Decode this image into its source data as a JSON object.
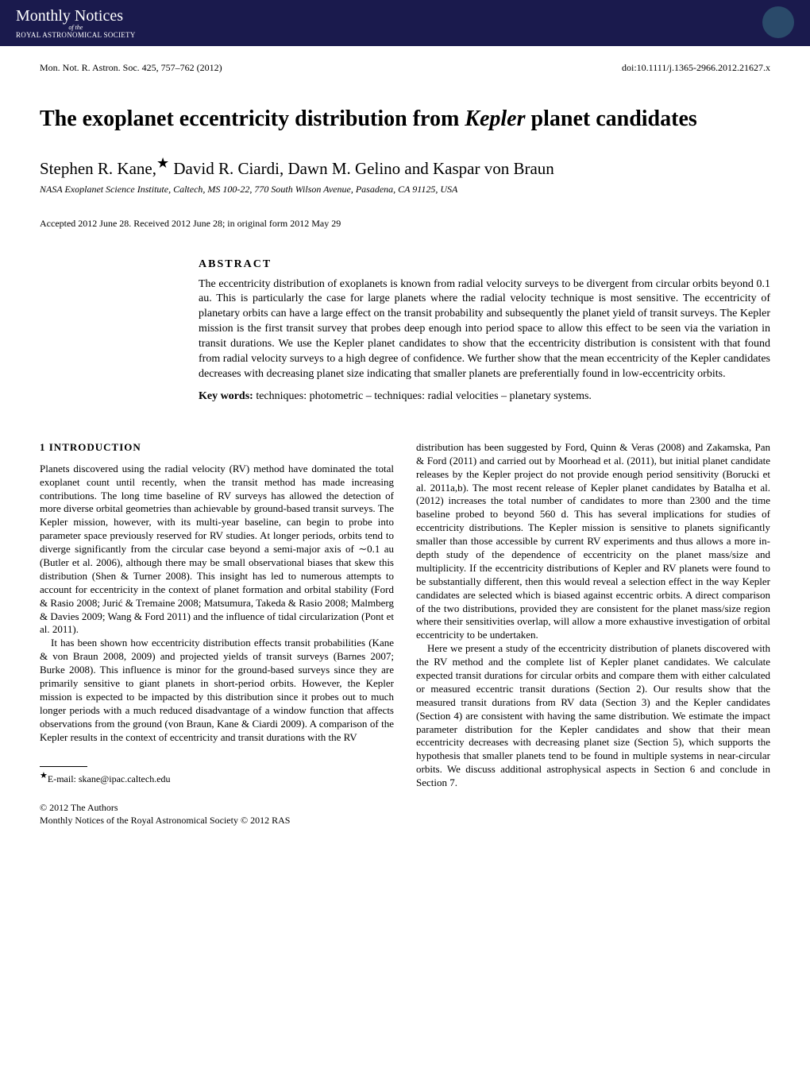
{
  "banner": {
    "journal_title": "Monthly Notices",
    "journal_ofthe": "of the",
    "journal_society": "ROYAL ASTRONOMICAL SOCIETY"
  },
  "citation": {
    "left": "Mon. Not. R. Astron. Soc. 425, 757–762 (2012)",
    "right": "doi:10.1111/j.1365-2966.2012.21627.x"
  },
  "title_pre": "The exoplanet eccentricity distribution from ",
  "title_em": "Kepler",
  "title_post": " planet candidates",
  "authors": "Stephen R. Kane,",
  "authors_rest": " David R. Ciardi, Dawn M. Gelino and Kaspar von Braun",
  "affiliation": "NASA Exoplanet Science Institute, Caltech, MS 100-22, 770 South Wilson Avenue, Pasadena, CA 91125, USA",
  "accepted": "Accepted 2012 June 28. Received 2012 June 28; in original form 2012 May 29",
  "abstract": {
    "heading": "ABSTRACT",
    "text": "The eccentricity distribution of exoplanets is known from radial velocity surveys to be divergent from circular orbits beyond 0.1 au. This is particularly the case for large planets where the radial velocity technique is most sensitive. The eccentricity of planetary orbits can have a large effect on the transit probability and subsequently the planet yield of transit surveys. The Kepler mission is the first transit survey that probes deep enough into period space to allow this effect to be seen via the variation in transit durations. We use the Kepler planet candidates to show that the eccentricity distribution is consistent with that found from radial velocity surveys to a high degree of confidence. We further show that the mean eccentricity of the Kepler candidates decreases with decreasing planet size indicating that smaller planets are preferentially found in low-eccentricity orbits.",
    "keywords_label": "Key words:",
    "keywords": "  techniques: photometric – techniques: radial velocities – planetary systems."
  },
  "intro": {
    "heading": "1 INTRODUCTION",
    "p1": "Planets discovered using the radial velocity (RV) method have dominated the total exoplanet count until recently, when the transit method has made increasing contributions. The long time baseline of RV surveys has allowed the detection of more diverse orbital geometries than achievable by ground-based transit surveys. The Kepler mission, however, with its multi-year baseline, can begin to probe into parameter space previously reserved for RV studies. At longer periods, orbits tend to diverge significantly from the circular case beyond a semi-major axis of ∼0.1 au (Butler et al. 2006), although there may be small observational biases that skew this distribution (Shen & Turner 2008). This insight has led to numerous attempts to account for eccentricity in the context of planet formation and orbital stability (Ford & Rasio 2008; Jurić & Tremaine 2008; Matsumura, Takeda & Rasio 2008; Malmberg & Davies 2009; Wang & Ford 2011) and the influence of tidal circularization (Pont et al. 2011).",
    "p2": "It has been shown how eccentricity distribution effects transit probabilities (Kane & von Braun 2008, 2009) and projected yields of transit surveys (Barnes 2007; Burke 2008). This influence is minor for the ground-based surveys since they are primarily sensitive to giant planets in short-period orbits. However, the Kepler mission is expected to be impacted by this distribution since it probes out to much longer periods with a much reduced disadvantage of a window function that affects observations from the ground (von Braun, Kane & Ciardi 2009). A comparison of the Kepler results in the context of eccentricity and transit durations with the RV",
    "p3": "distribution has been suggested by Ford, Quinn & Veras (2008) and Zakamska, Pan & Ford (2011) and carried out by Moorhead et al. (2011), but initial planet candidate releases by the Kepler project do not provide enough period sensitivity (Borucki et al. 2011a,b). The most recent release of Kepler planet candidates by Batalha et al. (2012) increases the total number of candidates to more than 2300 and the time baseline probed to beyond 560 d. This has several implications for studies of eccentricity distributions. The Kepler mission is sensitive to planets significantly smaller than those accessible by current RV experiments and thus allows a more in-depth study of the dependence of eccentricity on the planet mass/size and multiplicity. If the eccentricity distributions of Kepler and RV planets were found to be substantially different, then this would reveal a selection effect in the way Kepler candidates are selected which is biased against eccentric orbits. A direct comparison of the two distributions, provided they are consistent for the planet mass/size region where their sensitivities overlap, will allow a more exhaustive investigation of orbital eccentricity to be undertaken.",
    "p4": "Here we present a study of the eccentricity distribution of planets discovered with the RV method and the complete list of Kepler planet candidates. We calculate expected transit durations for circular orbits and compare them with either calculated or measured eccentric transit durations (Section 2). Our results show that the measured transit durations from RV data (Section 3) and the Kepler candidates (Section 4) are consistent with having the same distribution. We estimate the impact parameter distribution for the Kepler candidates and show that their mean eccentricity decreases with decreasing planet size (Section 5), which supports the hypothesis that smaller planets tend to be found in multiple systems in near-circular orbits. We discuss additional astrophysical aspects in Section 6 and conclude in Section 7."
  },
  "footnote": {
    "email": "E-mail: skane@ipac.caltech.edu"
  },
  "copyright": {
    "line1": "© 2012 The Authors",
    "line2": "Monthly Notices of the Royal Astronomical Society © 2012 RAS"
  }
}
